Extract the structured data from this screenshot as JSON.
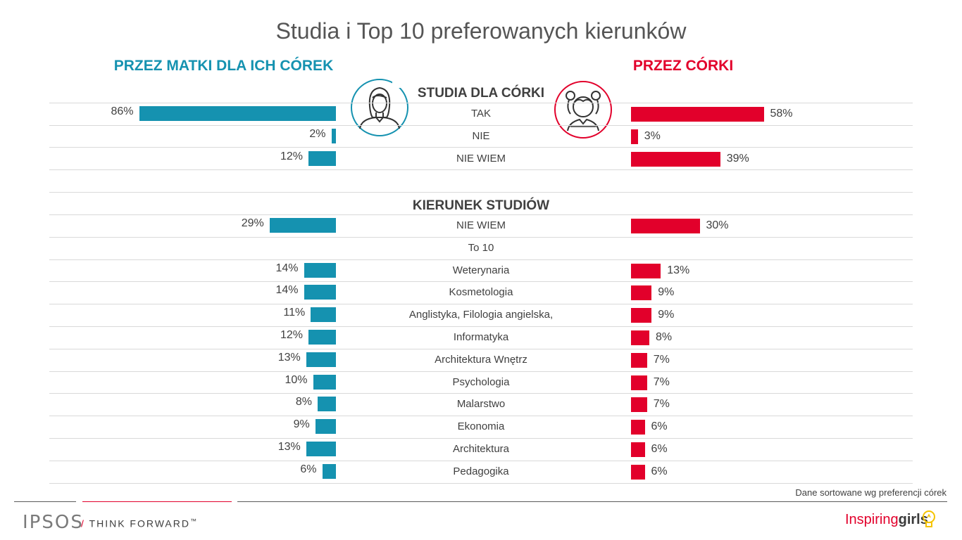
{
  "title": "Studia i Top 10 preferowanych kierunków",
  "left_header": "PRZEZ MATKI DLA ICH CÓREK",
  "right_header": "PRZEZ CÓRKI",
  "colors": {
    "mothers": "#1592b0",
    "daughters": "#e2002b"
  },
  "footnote": "Dane sortowane wg preferencji córek",
  "footer": {
    "logo": "IPSOS",
    "tagline": "THINK FORWARD",
    "tm": "™",
    "brand_a": "Inspiring",
    "brand_b": "girls"
  },
  "icons": {
    "mother": "woman-avatar-icon",
    "daughter": "girl-avatar-icon",
    "bulb": "lightbulb-icon"
  },
  "chart_data": [
    {
      "type": "bar",
      "title": "STUDIA DLA CÓRKI",
      "categories": [
        "TAK",
        "NIE",
        "NIE WIEM"
      ],
      "series": [
        {
          "name": "PRZEZ MATKI DLA ICH CÓREK",
          "values": [
            86,
            2,
            12
          ]
        },
        {
          "name": "PRZEZ CÓRKI",
          "values": [
            58,
            3,
            39
          ]
        }
      ],
      "unit": "%"
    },
    {
      "type": "bar",
      "title": "KIERUNEK STUDIÓW",
      "categories": [
        "NIE WIEM",
        "To 10",
        "Weterynaria",
        "Kosmetologia",
        "Anglistyka, Filologia angielska,",
        "Informatyka",
        "Architektura Wnętrz",
        "Psychologia",
        "Malarstwo",
        "Ekonomia",
        "Architektura",
        "Pedagogika"
      ],
      "series": [
        {
          "name": "PRZEZ MATKI DLA ICH CÓREK",
          "values": [
            29,
            null,
            14,
            14,
            11,
            12,
            13,
            10,
            8,
            9,
            13,
            6
          ]
        },
        {
          "name": "PRZEZ CÓRKI",
          "values": [
            30,
            null,
            13,
            9,
            9,
            8,
            7,
            7,
            7,
            6,
            6,
            6
          ]
        }
      ],
      "unit": "%"
    }
  ]
}
